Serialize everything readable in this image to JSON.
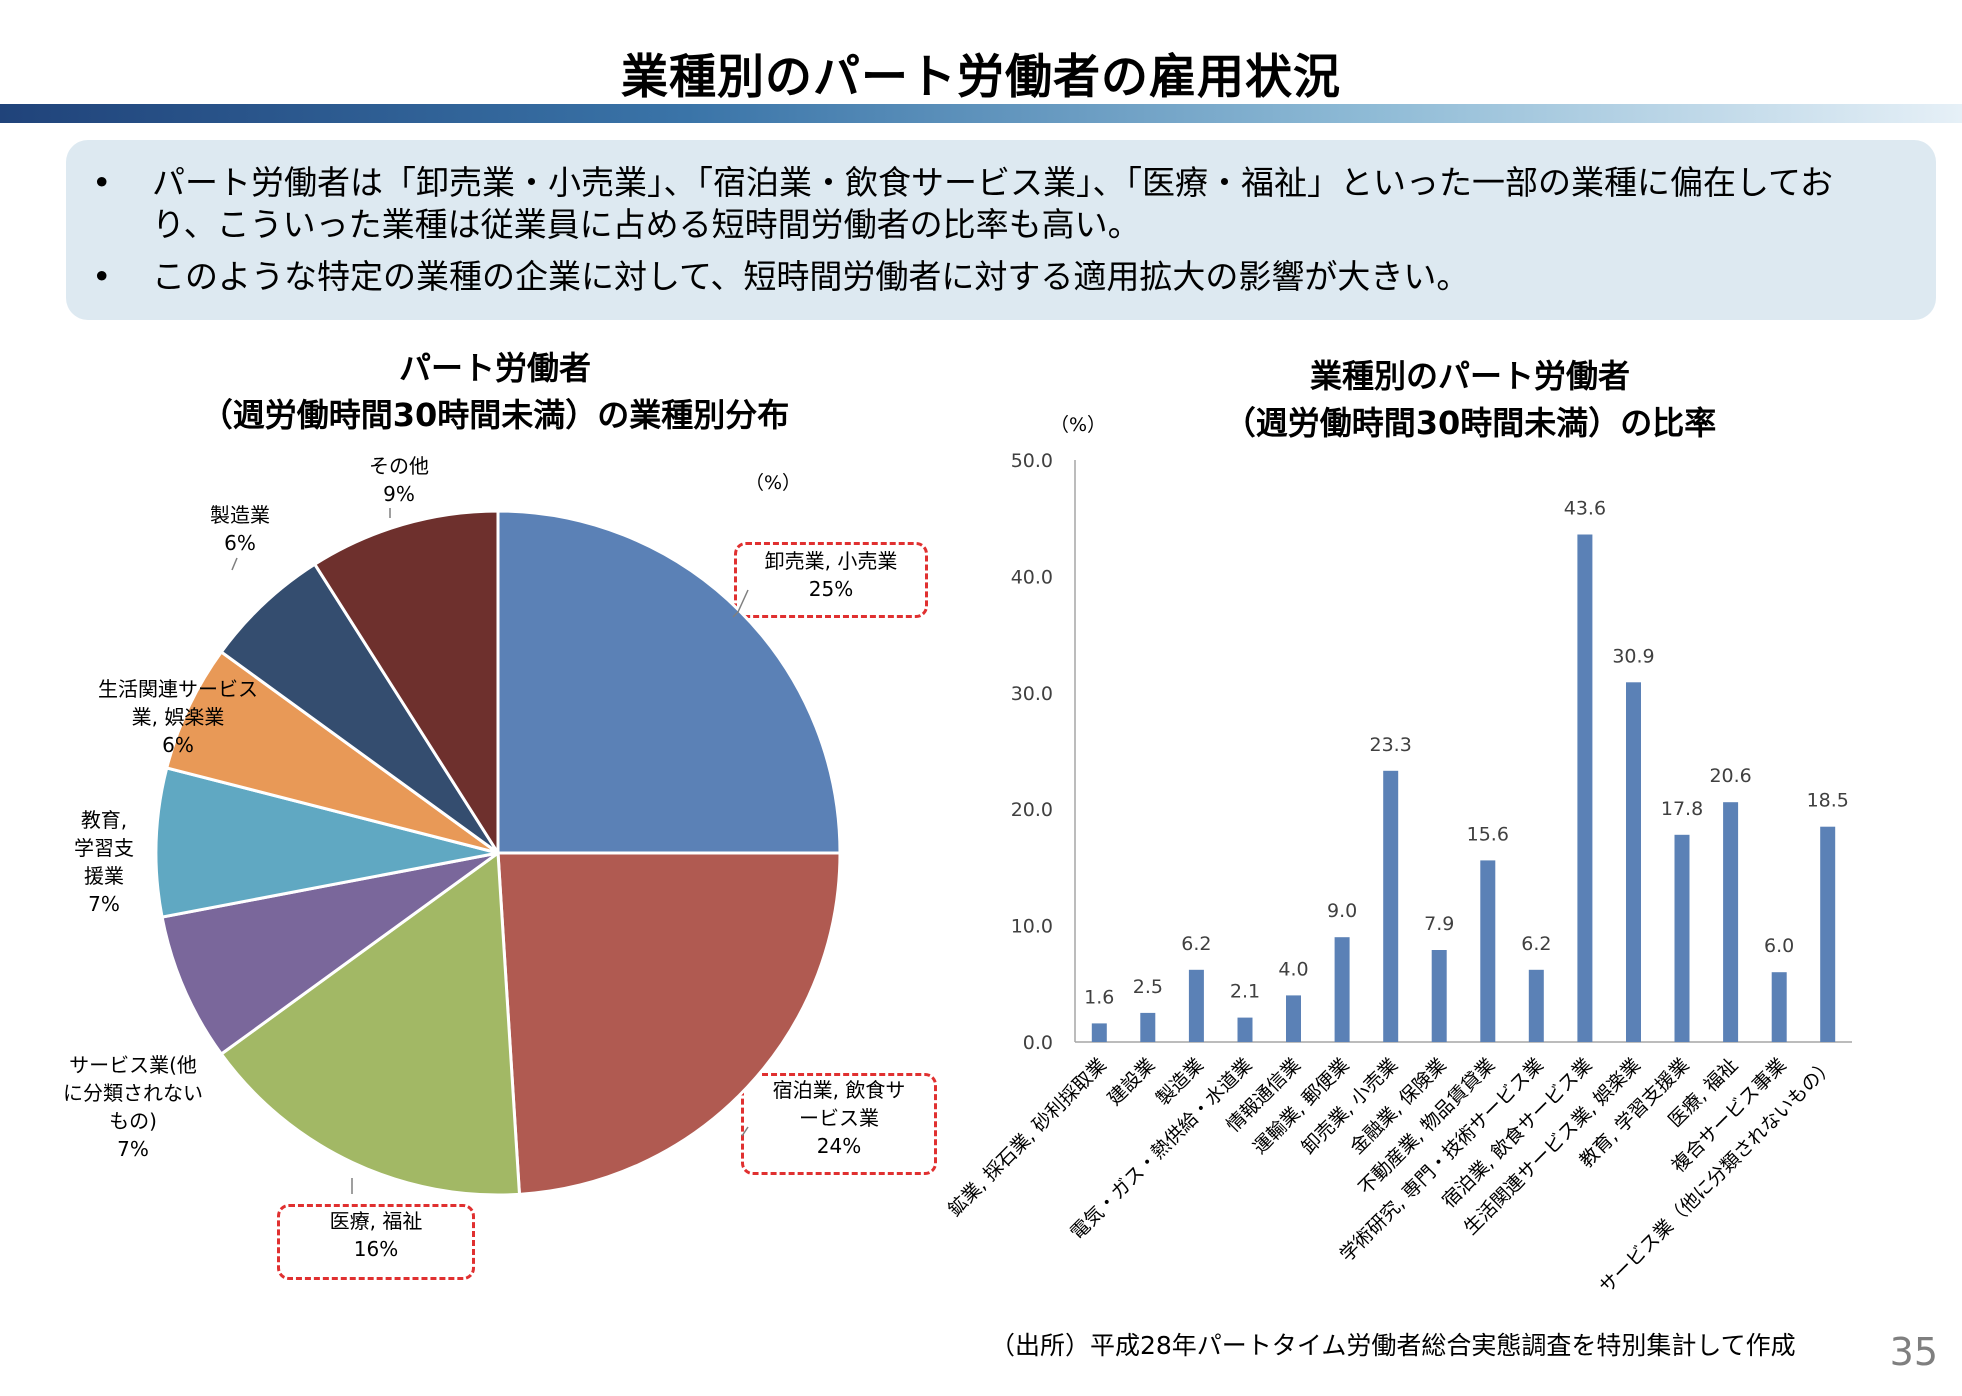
{
  "page": {
    "title": "業種別のパート労働者の雇用状況",
    "bullets": [
      "パート労働者は「卸売業・小売業」、「宿泊業・飲食サービス業」、「医療・福祉」といった一部の業種に偏在しており、こういった業種は従業員に占める短時間労働者の比率も高い。",
      "このような特定の業種の企業に対して、短時間労働者に対する適用拡大の影響が大きい。"
    ],
    "bullet_mark": "•",
    "source": "（出所）平成28年パートタイム労働者総合実態調査を特別集計して作成",
    "page_number": "35"
  },
  "chart_data": [
    {
      "type": "pie",
      "title_lines": [
        "パート労働者",
        "（週労働時間30時間未満）の業種別分布"
      ],
      "unit": "（%）",
      "slices": [
        {
          "label": "卸売業, 小売業",
          "value": 25,
          "color": "#5b81b6",
          "highlighted": true
        },
        {
          "label": "宿泊業, 飲食サービス業",
          "value": 24,
          "color": "#b05a51",
          "highlighted": true
        },
        {
          "label": "医療, 福祉",
          "value": 16,
          "color": "#a2b865",
          "highlighted": true
        },
        {
          "label": "サービス業(他に分類されないもの)",
          "value": 7,
          "color": "#7a679b",
          "highlighted": false
        },
        {
          "label": "教育, 学習支援業",
          "value": 7,
          "color": "#60a8c2",
          "highlighted": false
        },
        {
          "label": "生活関連サービス業, 娯楽業",
          "value": 6,
          "color": "#e89957",
          "highlighted": false
        },
        {
          "label": "製造業",
          "value": 6,
          "color": "#344d6f",
          "highlighted": false
        },
        {
          "label": "その他",
          "value": 9,
          "color": "#6e302d",
          "highlighted": false
        }
      ],
      "label_lines": [
        [
          "卸売業, 小売業",
          "25%"
        ],
        [
          "宿泊業, 飲食サ",
          "ービス業",
          "24%"
        ],
        [
          "医療, 福祉",
          "16%"
        ],
        [
          "サービス業(他",
          "に分類されない",
          "もの)",
          "7%"
        ],
        [
          "教育,",
          "学習支",
          "援業",
          "7%"
        ],
        [
          "生活関連サービス",
          "業, 娯楽業",
          "6%"
        ],
        [
          "製造業",
          "6%"
        ],
        [
          "その他",
          "9%"
        ]
      ]
    },
    {
      "type": "bar",
      "title_lines": [
        "業種別のパート労働者",
        "（週労働時間30時間未満）の比率"
      ],
      "unit": "（%）",
      "ylim": [
        0,
        50
      ],
      "yticks": [
        "0.0",
        "10.0",
        "20.0",
        "30.0",
        "40.0",
        "50.0"
      ],
      "bar_color": "#5b81b6",
      "categories": [
        "鉱業, 採石業, 砂利採取業",
        "建設業",
        "製造業",
        "電気・ガス・熱供給・水道業",
        "情報通信業",
        "運輸業, 郵便業",
        "卸売業, 小売業",
        "金融業, 保険業",
        "不動産業, 物品賃貸業",
        "学術研究, 専門・技術サービス業",
        "宿泊業, 飲食サービス業",
        "生活関連サービス業, 娯楽業",
        "教育, 学習支援業",
        "医療, 福祉",
        "複合サービス事業",
        "サービス業（他に分類されないもの）"
      ],
      "values": [
        1.6,
        2.5,
        6.2,
        2.1,
        4.0,
        9.0,
        23.3,
        7.9,
        15.6,
        6.2,
        43.6,
        30.9,
        17.8,
        20.6,
        6.0,
        18.5
      ],
      "value_labels": [
        "1.6",
        "2.5",
        "6.2",
        "2.1",
        "4.0",
        "9.0",
        "23.3",
        "7.9",
        "15.6",
        "6.2",
        "43.6",
        "30.9",
        "17.8",
        "20.6",
        "6.0",
        "18.5"
      ]
    }
  ]
}
